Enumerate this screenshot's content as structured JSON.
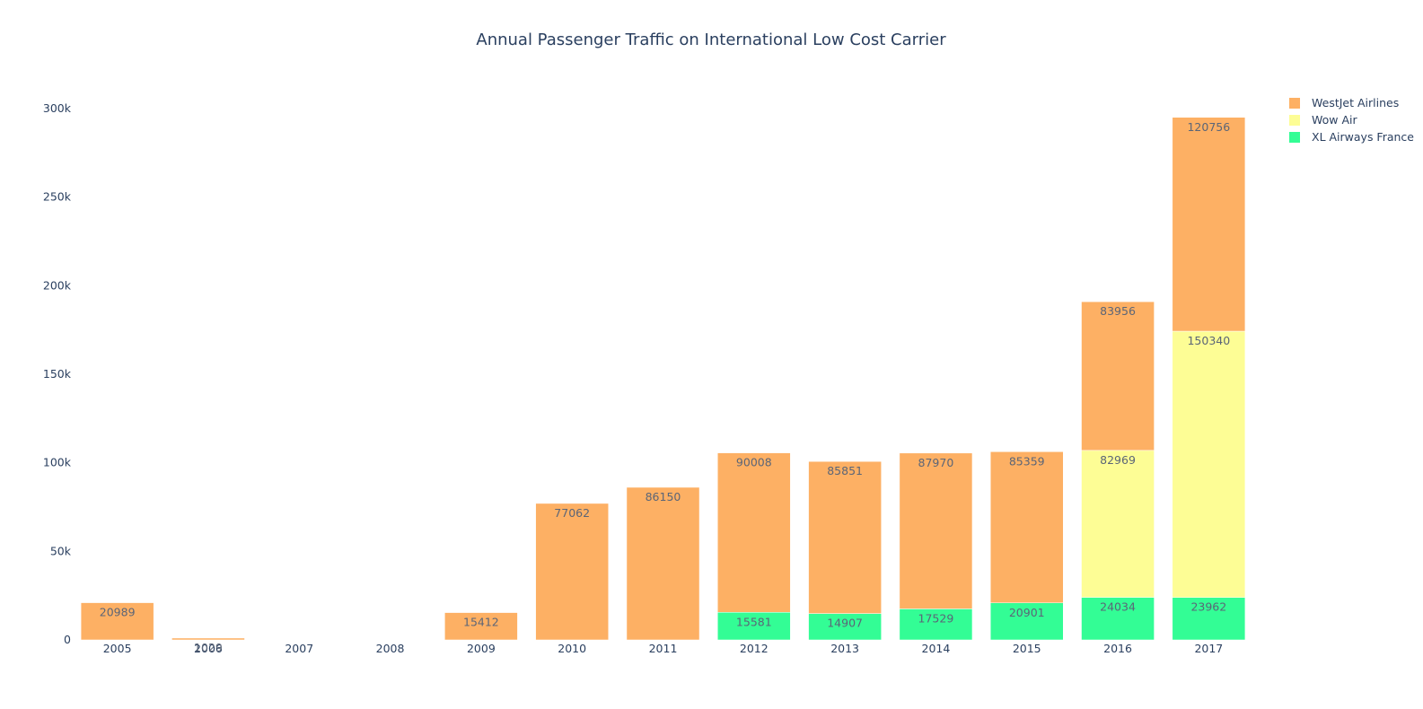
{
  "chart_data": {
    "type": "bar",
    "barmode": "stack",
    "title": "Annual Passenger Traffic on International Low Cost Carrier",
    "xlabel": "",
    "ylabel": "",
    "categories": [
      "2005",
      "2006",
      "2007",
      "2008",
      "2009",
      "2010",
      "2011",
      "2012",
      "2013",
      "2014",
      "2015",
      "2016",
      "2017"
    ],
    "ylim": [
      0,
      310000
    ],
    "yticks": [
      {
        "value": 0,
        "label": "0"
      },
      {
        "value": 50000,
        "label": "50k"
      },
      {
        "value": 100000,
        "label": "100k"
      },
      {
        "value": 150000,
        "label": "150k"
      },
      {
        "value": 200000,
        "label": "200k"
      },
      {
        "value": 250000,
        "label": "250k"
      },
      {
        "value": 300000,
        "label": "300k"
      }
    ],
    "grid": false,
    "legend_position": "top-right",
    "series": [
      {
        "name": "XL Airways France",
        "color": "#33fd95",
        "values": [
          null,
          null,
          null,
          null,
          null,
          null,
          null,
          15581,
          14907,
          17529,
          20901,
          24034,
          23962
        ]
      },
      {
        "name": "Wow Air",
        "color": "#fdfd95",
        "values": [
          null,
          null,
          null,
          null,
          null,
          null,
          null,
          null,
          null,
          null,
          null,
          82969,
          150340
        ]
      },
      {
        "name": "WestJet Airlines",
        "color": "#fdb064",
        "values": [
          20989,
          1029,
          null,
          null,
          15412,
          77062,
          86150,
          90008,
          85851,
          87970,
          85359,
          83956,
          120756
        ]
      }
    ],
    "legend_order": [
      "WestJet Airlines",
      "Wow Air",
      "XL Airways France"
    ]
  }
}
